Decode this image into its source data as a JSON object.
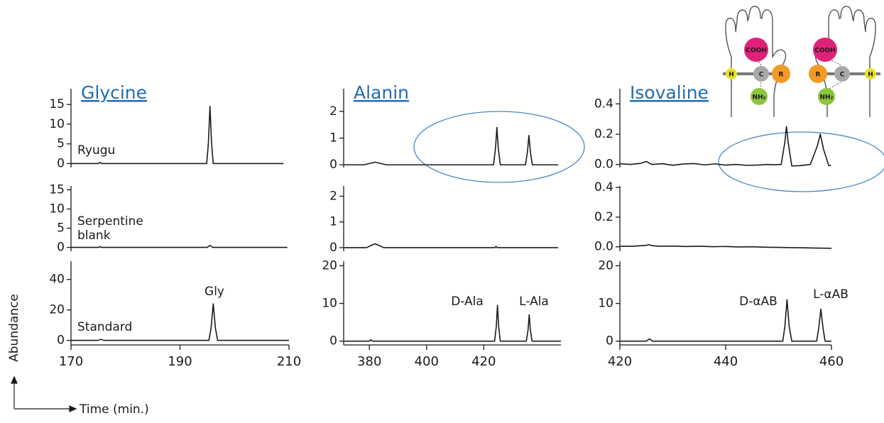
{
  "figure": {
    "y_label": "Abundance",
    "x_label": "Time (min.)"
  },
  "diagram": {
    "left": {
      "top": "COOH",
      "h": "H",
      "c": "C",
      "r": "R",
      "bottom": "NH₂"
    },
    "right": {
      "top": "COOH",
      "r": "R",
      "c": "C",
      "h": "H",
      "bottom": "NH₂"
    }
  },
  "chart_data": [
    {
      "type": "line",
      "title": "Glycine",
      "label": [
        "Ryugu"
      ],
      "color": "#1a1a1a",
      "xlim": [
        170,
        210
      ],
      "ylim": [
        -1,
        19
      ],
      "yticks": [
        0,
        5,
        10,
        15
      ],
      "x": [
        170,
        175,
        175.3,
        175.6,
        180,
        190,
        194.9,
        195.2,
        195.5,
        195.8,
        196.1,
        200,
        209
      ],
      "values": [
        0,
        0,
        0.3,
        0,
        0,
        0,
        0,
        5,
        14.5,
        5,
        0,
        0,
        0
      ]
    },
    {
      "type": "line",
      "title": "Alanin",
      "color": "#1a1a1a",
      "xlim": [
        371,
        447
      ],
      "ylim": [
        -0.1,
        2.85
      ],
      "yticks": [
        0,
        1,
        2
      ],
      "x": [
        371.2,
        378,
        380,
        382,
        384,
        386,
        395,
        410,
        423.4,
        424.1,
        424.6,
        425.1,
        425.8,
        432,
        434.6,
        435.3,
        435.8,
        436.3,
        437,
        446
      ],
      "values": [
        0,
        0,
        0.05,
        0.1,
        0.05,
        0,
        0,
        0,
        0,
        0.6,
        1.4,
        0.6,
        0,
        0,
        0,
        0.5,
        1.1,
        0.5,
        0,
        0
      ]
    },
    {
      "type": "line",
      "title": "Isovaline",
      "color": "#1a1a1a",
      "xlim": [
        420,
        460
      ],
      "ylim": [
        -0.02,
        0.5
      ],
      "yticks": [
        {
          "value": 0,
          "label": "0.0"
        },
        {
          "value": 0.2,
          "label": "0.2"
        },
        {
          "value": 0.4,
          "label": "0.4"
        }
      ],
      "x": [
        420,
        422,
        424,
        425,
        425.5,
        426,
        428,
        430,
        432,
        434,
        436,
        438,
        440,
        442,
        444,
        446,
        448,
        449,
        450.5,
        451.2,
        451.5,
        451.8,
        452.5,
        454,
        456,
        457.3,
        457.9,
        458.5,
        459.5,
        459.9
      ],
      "values": [
        0.005,
        0,
        0.008,
        0.02,
        0.01,
        0,
        0.005,
        -0.005,
        0.003,
        0.006,
        -0.003,
        0.004,
        -0.004,
        0,
        -0.006,
        -0.004,
        0,
        -0.002,
        0,
        0.15,
        0.25,
        0.15,
        -0.01,
        -0.008,
        0,
        0.12,
        0.2,
        0.1,
        -0.008,
        -0.005
      ]
    },
    {
      "type": "line",
      "label": [
        "Serpentine",
        "blank"
      ],
      "color": "#1a1a1a",
      "xlim": [
        170,
        210
      ],
      "ylim": [
        -1,
        16
      ],
      "yticks": [
        0,
        5,
        10,
        15
      ],
      "x": [
        170,
        175,
        175.3,
        175.6,
        190,
        195,
        195.5,
        196,
        209.7
      ],
      "values": [
        0,
        0,
        0.2,
        0,
        0,
        0,
        0.5,
        0,
        0
      ]
    },
    {
      "type": "line",
      "color": "#1a1a1a",
      "xlim": [
        371,
        447
      ],
      "ylim": [
        -0.14,
        2.4
      ],
      "yticks": [
        0,
        1,
        2
      ],
      "x": [
        371.2,
        379,
        380.5,
        382,
        383.5,
        385,
        395,
        410,
        423.9,
        424.3,
        424.7,
        446
      ],
      "values": [
        0,
        0,
        0.08,
        0.15,
        0.08,
        0,
        0,
        0,
        0,
        0.05,
        0,
        0
      ]
    },
    {
      "type": "line",
      "color": "#1a1a1a",
      "xlim": [
        420,
        460
      ],
      "ylim": [
        -0.03,
        0.41
      ],
      "yticks": [
        {
          "value": 0,
          "label": "0.0"
        },
        {
          "value": 0.2,
          "label": "0.2"
        },
        {
          "value": 0.4,
          "label": "0.4"
        }
      ],
      "x": [
        420,
        422.5,
        425,
        425.5,
        426,
        427.5,
        430,
        432.5,
        435,
        437.5,
        440,
        442.5,
        445,
        447.5,
        450,
        452.5,
        455,
        457.5,
        460
      ],
      "values": [
        0.003,
        0.004,
        0.01,
        0.015,
        0.008,
        0.004,
        0.005,
        0.002,
        0.004,
        0.001,
        0.002,
        -0.001,
        0,
        -0.003,
        -0.004,
        -0.006,
        -0.007,
        -0.009,
        -0.01
      ]
    },
    {
      "type": "line",
      "label": [
        "Standard"
      ],
      "annotations": [
        "Gly"
      ],
      "color": "#1a1a1a",
      "xlim": [
        170,
        210
      ],
      "ylim": [
        -3,
        52
      ],
      "yticks": [
        0,
        20,
        40
      ],
      "xticks": [
        170,
        190,
        210
      ],
      "x": [
        170,
        175,
        175.5,
        176,
        190,
        195.3,
        195.7,
        196.1,
        196.5,
        196.9,
        210
      ],
      "values": [
        0,
        0,
        0.7,
        0,
        0,
        0,
        8,
        24,
        8,
        0,
        0
      ]
    },
    {
      "type": "line",
      "annotations": [
        "D-Ala",
        "L-Ala"
      ],
      "color": "#1a1a1a",
      "xlim": [
        371,
        447
      ],
      "ylim": [
        -1,
        21.2
      ],
      "yticks": [
        0,
        10,
        20
      ],
      "xticks": [
        380,
        400,
        420
      ],
      "x": [
        371.2,
        380,
        380.5,
        381,
        410,
        423.8,
        424.4,
        424.8,
        425.2,
        425.8,
        434.9,
        435.5,
        435.9,
        436.3,
        436.9,
        447
      ],
      "values": [
        0,
        0,
        0.4,
        0,
        0,
        0,
        4,
        9.5,
        4,
        0,
        0,
        3,
        7,
        3,
        0,
        0
      ]
    },
    {
      "type": "line",
      "annotations": [
        "D-αAB",
        "L-αAB"
      ],
      "color": "#1a1a1a",
      "xlim": [
        420,
        460
      ],
      "ylim": [
        -1,
        21.2
      ],
      "yticks": [
        0,
        10,
        20
      ],
      "xticks": [
        420,
        440,
        460
      ],
      "x": [
        420,
        425,
        425.6,
        426.2,
        450,
        450.8,
        451.2,
        451.6,
        452,
        452.5,
        457.2,
        457.6,
        458,
        458.4,
        458.8,
        460
      ],
      "values": [
        0,
        0,
        0.6,
        0,
        0,
        0,
        4,
        11,
        4,
        0,
        0,
        3.5,
        8.5,
        3.5,
        0,
        0
      ]
    }
  ]
}
